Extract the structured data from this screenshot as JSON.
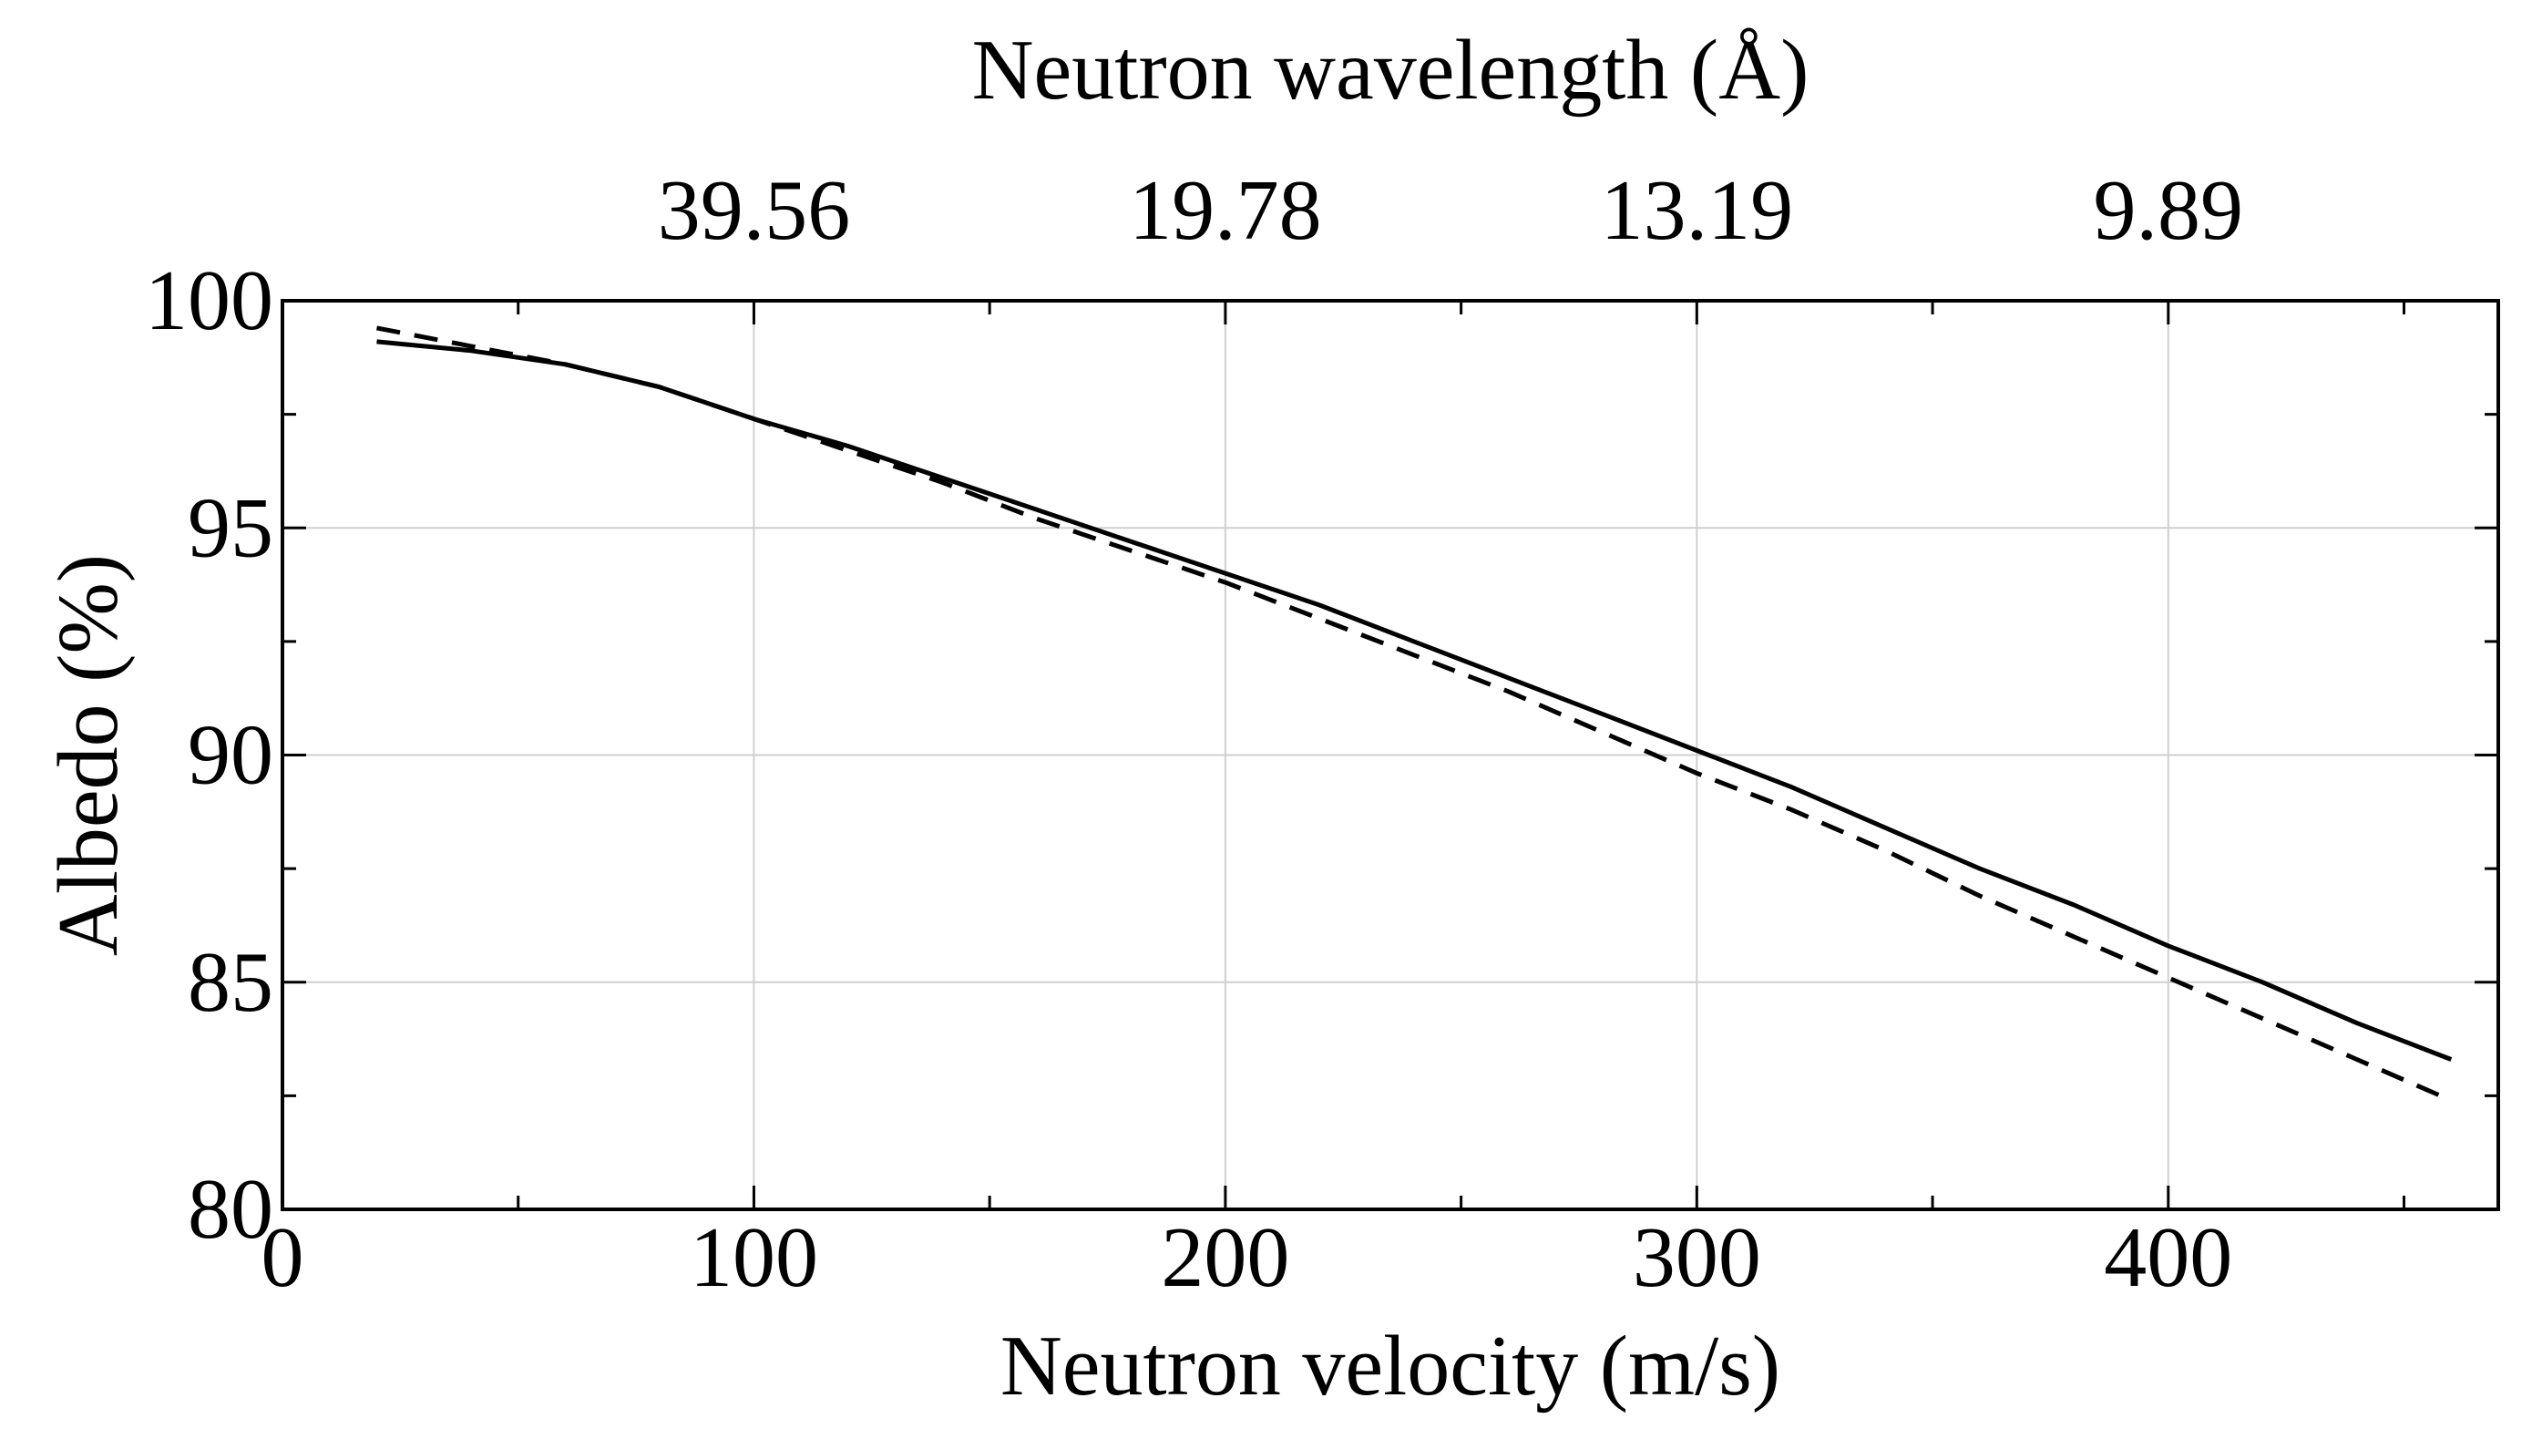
{
  "chart_data": {
    "type": "line",
    "xlabel": "Neutron velocity (m/s)",
    "ylabel": "Albedo (%)",
    "top_xlabel": "Neutron wavelength (Å)",
    "xlim": [
      0,
      470
    ],
    "ylim": [
      80,
      100
    ],
    "x_ticks": [
      0,
      100,
      200,
      300,
      400
    ],
    "x_tick_labels": [
      "0",
      "100",
      "200",
      "300",
      "400"
    ],
    "x_minor_ticks": [
      50,
      150,
      250,
      350,
      450
    ],
    "y_ticks": [
      80,
      85,
      90,
      95,
      100
    ],
    "y_tick_labels": [
      "80",
      "85",
      "90",
      "95",
      "100"
    ],
    "y_minor_ticks": [
      82.5,
      87.5,
      92.5,
      97.5
    ],
    "top_ticks": [
      {
        "x": 100,
        "label": "39.56"
      },
      {
        "x": 200,
        "label": "19.78"
      },
      {
        "x": 300,
        "label": "13.19"
      },
      {
        "x": 400,
        "label": "9.89"
      }
    ],
    "grid": true,
    "series": [
      {
        "name": "solid",
        "style": "solid",
        "x": [
          20,
          40,
          60,
          80,
          100,
          120,
          140,
          160,
          180,
          200,
          220,
          240,
          260,
          280,
          300,
          320,
          340,
          360,
          380,
          400,
          420,
          440,
          460
        ],
        "values": [
          99.1,
          98.9,
          98.6,
          98.1,
          97.4,
          96.8,
          96.1,
          95.4,
          94.7,
          94.0,
          93.3,
          92.5,
          91.7,
          90.9,
          90.1,
          89.3,
          88.4,
          87.5,
          86.7,
          85.8,
          85.0,
          84.1,
          83.3
        ]
      },
      {
        "name": "dashed",
        "style": "dashed",
        "x": [
          20,
          40,
          60,
          80,
          100,
          120,
          140,
          160,
          180,
          200,
          220,
          240,
          260,
          280,
          300,
          320,
          340,
          360,
          380,
          400,
          420,
          440,
          460
        ],
        "values": [
          99.4,
          99.0,
          98.6,
          98.1,
          97.4,
          96.7,
          96.0,
          95.2,
          94.5,
          93.8,
          93.0,
          92.2,
          91.4,
          90.5,
          89.6,
          88.8,
          87.9,
          86.9,
          86.0,
          85.1,
          84.2,
          83.3,
          82.4
        ]
      }
    ]
  }
}
